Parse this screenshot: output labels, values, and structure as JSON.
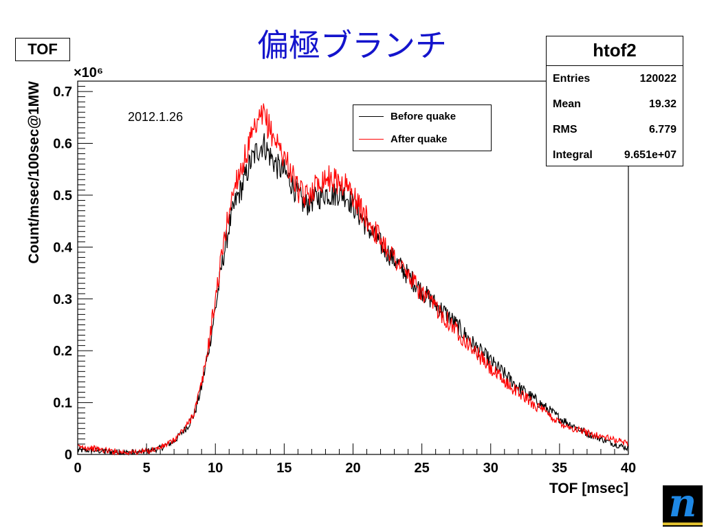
{
  "slide": {
    "title": "偏極ブランチ"
  },
  "histogram": {
    "name": "TOF"
  },
  "stats": {
    "title": "htof2",
    "rows": [
      {
        "label": "Entries",
        "value": "120022"
      },
      {
        "label": "Mean",
        "value": "19.32"
      },
      {
        "label": "RMS",
        "value": "6.779"
      },
      {
        "label": "Integral",
        "value": "9.651e+07"
      }
    ]
  },
  "annotation": {
    "date": "2012.1.26"
  },
  "colors": {
    "before": "#000000",
    "after": "#ff0000",
    "title": "#1414cc",
    "logo": "#1e88e5"
  },
  "logo": {
    "letter": "n"
  },
  "chart_data": {
    "type": "line",
    "title": "",
    "xlabel": "TOF [msec]",
    "ylabel": "Count/msec/100sec@1MW",
    "y_multiplier_label": "×10⁶",
    "xlim": [
      0,
      40
    ],
    "ylim": [
      0,
      0.72
    ],
    "x_ticks": [
      0,
      5,
      10,
      15,
      20,
      25,
      30,
      35,
      40
    ],
    "y_ticks": [
      0,
      0.1,
      0.2,
      0.3,
      0.4,
      0.5,
      0.6,
      0.7
    ],
    "y_tick_labels": [
      "0",
      "0.1",
      "0.2",
      "0.3",
      "0.4",
      "0.5",
      "0.6",
      "0.7"
    ],
    "legend": {
      "position": "top-center"
    },
    "grid": false,
    "series": [
      {
        "name": "Before quake",
        "color": "#000000",
        "x": [
          0,
          1,
          2,
          3,
          4,
          5,
          6,
          7,
          8,
          8.5,
          9,
          9.5,
          10,
          10.5,
          11,
          11.5,
          12,
          12.5,
          13,
          13.5,
          14,
          14.5,
          15,
          15.5,
          16,
          16.5,
          17,
          17.5,
          18,
          18.5,
          19,
          19.5,
          20,
          20.5,
          21,
          22,
          23,
          24,
          25,
          26,
          27,
          28,
          29,
          30,
          31,
          32,
          33,
          34,
          35,
          36,
          37,
          38,
          39,
          40
        ],
        "y": [
          0.008,
          0.008,
          0.006,
          0.004,
          0.003,
          0.006,
          0.012,
          0.025,
          0.055,
          0.08,
          0.13,
          0.2,
          0.28,
          0.37,
          0.44,
          0.49,
          0.52,
          0.56,
          0.585,
          0.6,
          0.575,
          0.555,
          0.545,
          0.525,
          0.5,
          0.48,
          0.49,
          0.495,
          0.505,
          0.5,
          0.505,
          0.5,
          0.48,
          0.46,
          0.44,
          0.405,
          0.375,
          0.345,
          0.315,
          0.29,
          0.265,
          0.235,
          0.205,
          0.18,
          0.155,
          0.13,
          0.11,
          0.09,
          0.07,
          0.055,
          0.04,
          0.03,
          0.02,
          0.012
        ]
      },
      {
        "name": "After quake",
        "color": "#ff0000",
        "x": [
          0,
          1,
          2,
          3,
          4,
          5,
          6,
          7,
          8,
          8.5,
          9,
          9.5,
          10,
          10.5,
          11,
          11.5,
          12,
          12.5,
          13,
          13.5,
          14,
          14.5,
          15,
          15.5,
          16,
          16.5,
          17,
          17.5,
          18,
          18.5,
          19,
          19.5,
          20,
          20.5,
          21,
          22,
          23,
          24,
          25,
          26,
          27,
          28,
          29,
          30,
          31,
          32,
          33,
          34,
          35,
          36,
          37,
          38,
          39,
          40
        ],
        "y": [
          0.015,
          0.012,
          0.008,
          0.005,
          0.004,
          0.006,
          0.013,
          0.027,
          0.058,
          0.085,
          0.135,
          0.21,
          0.3,
          0.39,
          0.47,
          0.53,
          0.56,
          0.6,
          0.63,
          0.655,
          0.625,
          0.6,
          0.575,
          0.545,
          0.51,
          0.495,
          0.51,
          0.525,
          0.535,
          0.53,
          0.525,
          0.52,
          0.5,
          0.475,
          0.455,
          0.415,
          0.38,
          0.345,
          0.31,
          0.285,
          0.255,
          0.225,
          0.195,
          0.165,
          0.14,
          0.12,
          0.1,
          0.08,
          0.062,
          0.05,
          0.042,
          0.035,
          0.028,
          0.022
        ]
      }
    ]
  }
}
